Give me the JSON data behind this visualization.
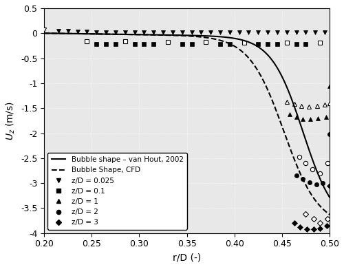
{
  "xlim": [
    0.2,
    0.5
  ],
  "ylim": [
    -4.0,
    0.5
  ],
  "xlabel": "r/D (-)",
  "ylabel": "$U_z$ (m/s)",
  "xticks": [
    0.2,
    0.25,
    0.3,
    0.35,
    0.4,
    0.45,
    0.5
  ],
  "yticks": [
    0.5,
    0,
    -0.5,
    -1.0,
    -1.5,
    -2.0,
    -2.5,
    -3.0,
    -3.5,
    -4.0
  ],
  "ytick_labels": [
    "0.5",
    "0",
    "-0.5",
    "-1",
    "-1.5",
    "-2",
    "-2.5",
    "-3",
    "-3.5",
    "-4"
  ],
  "bg_color": "#e8e8e8",
  "legend_loc": "lower left"
}
